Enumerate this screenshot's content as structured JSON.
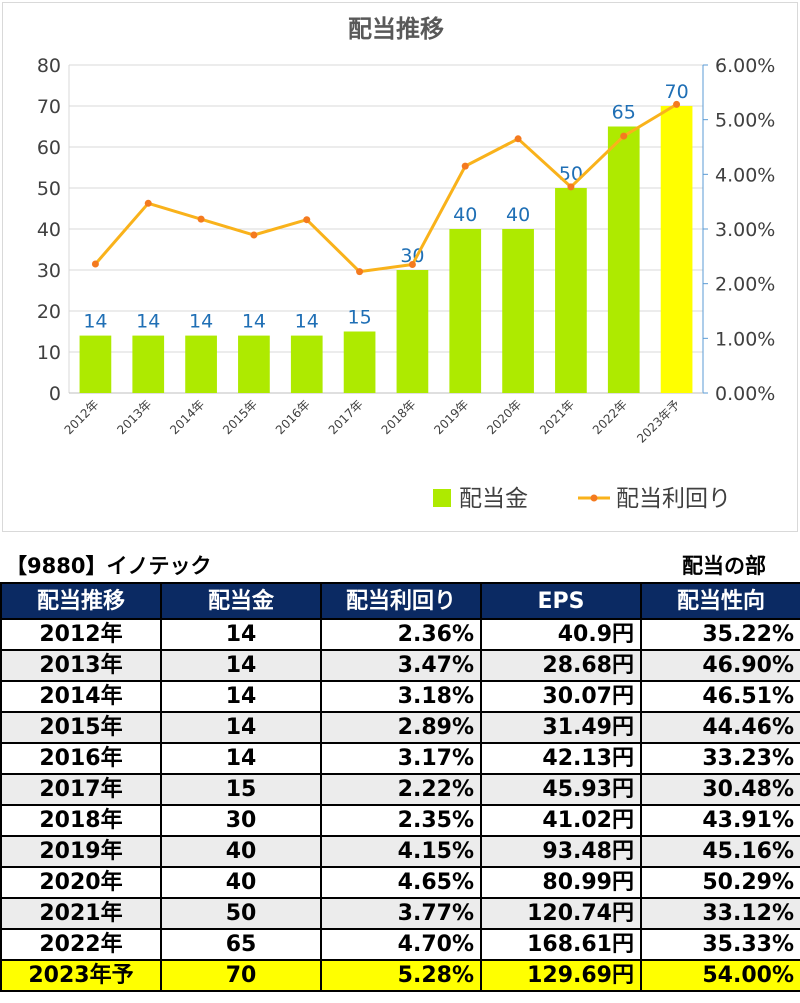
{
  "chart_data": {
    "type": "bar",
    "title": "配当推移",
    "categories": [
      "2012年",
      "2013年",
      "2014年",
      "2015年",
      "2016年",
      "2017年",
      "2018年",
      "2019年",
      "2020年",
      "2021年",
      "2022年",
      "2023年予"
    ],
    "series": [
      {
        "name": "配当金",
        "kind": "bar",
        "axis": "left",
        "values": [
          14,
          14,
          14,
          14,
          14,
          15,
          30,
          40,
          40,
          50,
          65,
          70
        ],
        "color": "#aeea00",
        "highlight_last_color": "#ffff00"
      },
      {
        "name": "配当利回り",
        "kind": "line",
        "axis": "right",
        "values": [
          2.36,
          3.47,
          3.18,
          2.89,
          3.17,
          2.22,
          2.35,
          4.15,
          4.65,
          3.77,
          4.7,
          5.28
        ],
        "color": "#f9b21b",
        "marker_color": "#f47a1f"
      }
    ],
    "ylim_left": [
      0,
      80
    ],
    "yticks_left": [
      "0",
      "10",
      "20",
      "30",
      "40",
      "50",
      "60",
      "70",
      "80"
    ],
    "ylim_right": [
      0,
      6
    ],
    "yticks_right": [
      "0.00%",
      "1.00%",
      "2.00%",
      "3.00%",
      "4.00%",
      "5.00%",
      "6.00%"
    ],
    "data_labels": [
      "14",
      "14",
      "14",
      "14",
      "14",
      "15",
      "30",
      "40",
      "40",
      "50",
      "65",
      "70"
    ],
    "legend_position": "bottom-right",
    "grid": true
  },
  "table": {
    "title_left": "【9880】イノテック",
    "title_right": "配当の部",
    "headers": [
      "配当推移",
      "配当金",
      "配当利回り",
      "EPS",
      "配当性向"
    ],
    "rows": [
      [
        "2012年",
        "14",
        "2.36%",
        "40.9円",
        "35.22%"
      ],
      [
        "2013年",
        "14",
        "3.47%",
        "28.68円",
        "46.90%"
      ],
      [
        "2014年",
        "14",
        "3.18%",
        "30.07円",
        "46.51%"
      ],
      [
        "2015年",
        "14",
        "2.89%",
        "31.49円",
        "44.46%"
      ],
      [
        "2016年",
        "14",
        "3.17%",
        "42.13円",
        "33.23%"
      ],
      [
        "2017年",
        "15",
        "2.22%",
        "45.93円",
        "30.48%"
      ],
      [
        "2018年",
        "30",
        "2.35%",
        "41.02円",
        "43.91%"
      ],
      [
        "2019年",
        "40",
        "4.15%",
        "93.48円",
        "45.16%"
      ],
      [
        "2020年",
        "40",
        "4.65%",
        "80.99円",
        "50.29%"
      ],
      [
        "2021年",
        "50",
        "3.77%",
        "120.74円",
        "33.12%"
      ],
      [
        "2022年",
        "65",
        "4.70%",
        "168.61円",
        "35.33%"
      ],
      [
        "2023年予",
        "70",
        "5.28%",
        "129.69円",
        "54.00%"
      ]
    ]
  }
}
